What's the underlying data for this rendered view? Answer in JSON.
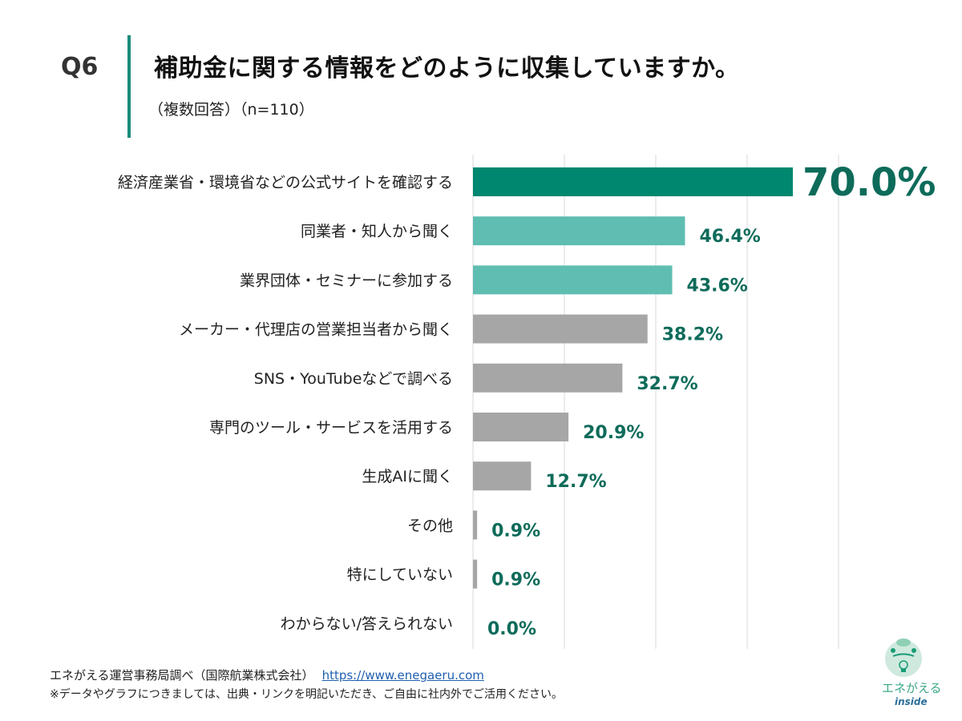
{
  "header": {
    "question": "Q6",
    "title": "補助金に関する情報をどのように収集していますか。",
    "subtitle": "（複数回答）（n=110）"
  },
  "chart_data": {
    "type": "bar",
    "orientation": "horizontal",
    "categories": [
      "経済産業省・環境省などの公式サイトを確認する",
      "同業者・知人から聞く",
      "業界団体・セミナーに参加する",
      "メーカー・代理店の営業担当者から聞く",
      "SNS・YouTubeなどで調べる",
      "専門のツール・サービスを活用する",
      "生成AIに聞く",
      "その他",
      "特にしていない",
      "わからない/答えられない"
    ],
    "values": [
      70.0,
      46.4,
      43.6,
      38.2,
      32.7,
      20.9,
      12.7,
      0.9,
      0.9,
      0.0
    ],
    "labels": [
      "70.0%",
      "46.4%",
      "43.6%",
      "38.2%",
      "32.7%",
      "20.9%",
      "12.7%",
      "0.9%",
      "0.9%",
      "0.0%"
    ],
    "xlim": [
      0,
      80
    ],
    "grid": true,
    "colors": {
      "top1": "#00876f",
      "top2_3": "#5fbdb2",
      "others": "#a6a6a6",
      "label": "#0e6b5a",
      "grid": "#d9d9d9"
    }
  },
  "footer": {
    "source": "エネがえる運営事務局調べ（国際航業株式会社）",
    "link": "https://www.enegaeru.com",
    "note": "※データやグラフにつきましては、出典・リンクを明記いただき、ご自由に社内外でご活用ください。"
  },
  "logo": {
    "text": "エネがえる",
    "sub": "inside"
  }
}
